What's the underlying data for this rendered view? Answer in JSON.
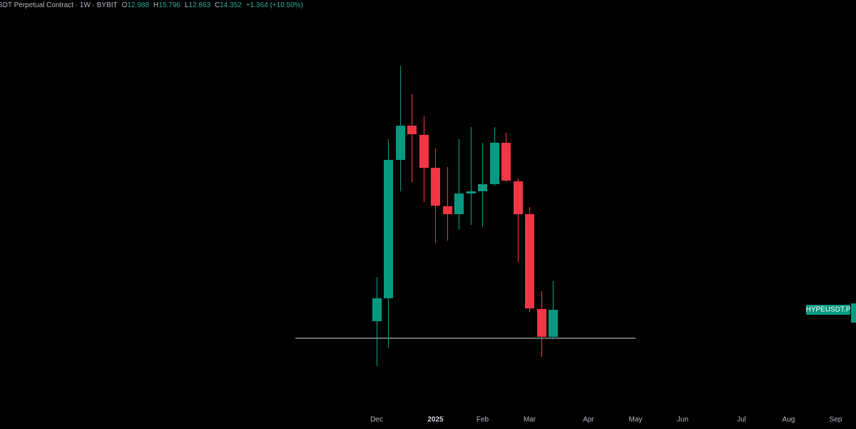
{
  "chart_data": {
    "type": "candlestick",
    "title": "SDT Perpetual Contract · 1W · BYBIT",
    "ohlc_letters": [
      "O",
      "H",
      "L",
      "C"
    ],
    "change_label": "+1.364 (+10.50%)",
    "symbol_label": "HYPEUSDT.P",
    "x": [
      0,
      1,
      2,
      3,
      4,
      5,
      6,
      7,
      8,
      9,
      10,
      11,
      12,
      13,
      14,
      15
    ],
    "open": [
      13.78,
      14.93,
      21.89,
      23.61,
      23.15,
      21.49,
      19.56,
      19.16,
      20.2,
      20.31,
      20.67,
      22.75,
      20.81,
      19.16,
      14.39,
      12.988
    ],
    "high": [
      16.0,
      22.93,
      26.63,
      25.19,
      24.08,
      22.46,
      21.53,
      22.93,
      23.54,
      22.75,
      23.54,
      23.26,
      20.96,
      19.52,
      15.28,
      15.796
    ],
    "low": [
      11.52,
      12.45,
      20.31,
      20.78,
      19.77,
      17.73,
      17.83,
      18.37,
      18.62,
      18.52,
      20.6,
      20.78,
      16.76,
      14.24,
      11.98,
      12.863
    ],
    "close": [
      14.93,
      21.89,
      23.61,
      23.18,
      21.49,
      19.59,
      19.16,
      20.2,
      20.31,
      20.67,
      22.75,
      20.85,
      19.16,
      14.42,
      12.99,
      14.352
    ],
    "up_color": "#089981",
    "down_color": "#f23645",
    "xlim": [
      -32,
      40.73
    ],
    "xticks": [
      {
        "value": 0,
        "label": "Dec"
      },
      {
        "value": 5,
        "label": "2025"
      },
      {
        "value": 9,
        "label": "Feb"
      },
      {
        "value": 13,
        "label": "Mar"
      },
      {
        "value": 18,
        "label": "Apr"
      },
      {
        "value": 22,
        "label": "May"
      },
      {
        "value": 26,
        "label": "Jun"
      },
      {
        "value": 31,
        "label": "Jul"
      },
      {
        "value": 35,
        "label": "Aug"
      },
      {
        "value": 39,
        "label": "Sep"
      }
    ],
    "ylim": [
      9.29,
      29.93
    ],
    "horizontal_line": {
      "value": 12.92,
      "x_range": [
        -6.9,
        22
      ],
      "color": "#d1d4dc"
    }
  }
}
